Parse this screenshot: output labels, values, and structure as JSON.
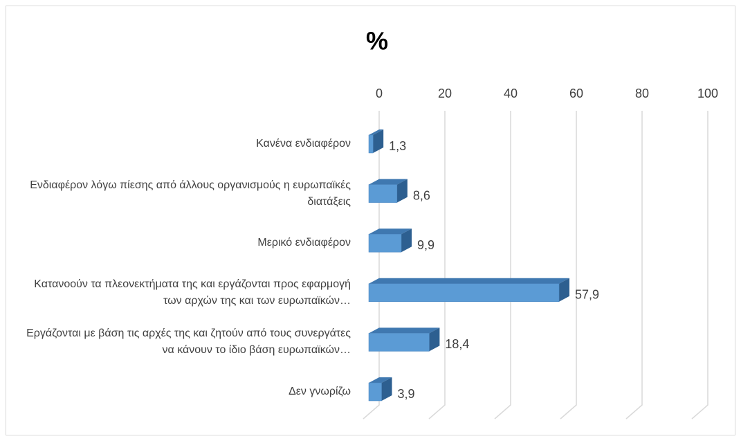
{
  "chart_data": {
    "type": "bar3d_horizontal",
    "title": "%",
    "categories": [
      "Κανένα ενδιαφέρον",
      "Ενδιαφέρον λόγω πίεσης από άλλους οργανισμούς η ευρωπαϊκές διατάξεις",
      "Μερικό ενδιαφέρον",
      "Κατανοούν τα πλεονεκτήματα της και εργάζονται προς εφαρμογή των αρχών της και των ευρωπαϊκών…",
      "Εργάζονται με βάση τις αρχές της και ζητούν από τους συνεργάτες να κάνουν το ίδιο βάση ευρωπαϊκών…",
      "Δεν γνωρίζω"
    ],
    "values": [
      1.3,
      8.6,
      9.9,
      57.9,
      18.4,
      3.9
    ],
    "value_labels": [
      "1,3",
      "8,6",
      "9,9",
      "57,9",
      "18,4",
      "3,9"
    ],
    "color": "#5b9bd5",
    "xlim": [
      0,
      100
    ],
    "xticks": [
      0,
      20,
      40,
      60,
      80,
      100
    ],
    "grid": true
  }
}
